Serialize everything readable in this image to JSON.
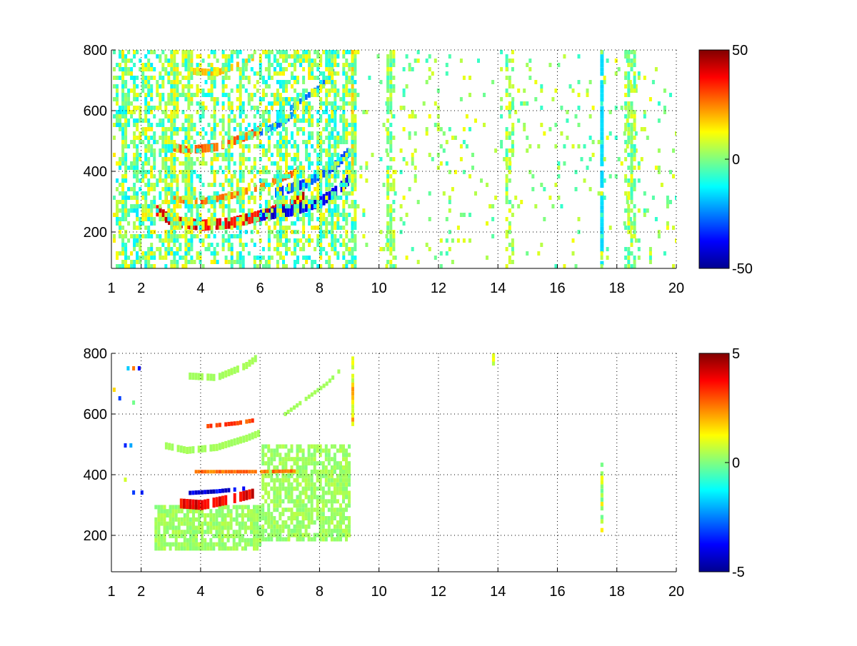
{
  "chart_data": [
    {
      "type": "heatmap",
      "title": "",
      "xlabel": "",
      "ylabel": "",
      "xlim": [
        1,
        20
      ],
      "ylim": [
        80,
        800
      ],
      "grid": true,
      "x_ticks": [
        1,
        2,
        4,
        6,
        8,
        10,
        12,
        14,
        16,
        18,
        20
      ],
      "x_tick_labels": [
        "1",
        "2",
        "4",
        "6",
        "8",
        "10",
        "12",
        "14",
        "16",
        "18",
        "20"
      ],
      "y_ticks": [
        200,
        400,
        600,
        800
      ],
      "y_tick_labels": [
        "200",
        "400",
        "600",
        "800"
      ],
      "colorbar": {
        "colormap": "jet",
        "range": [
          -50,
          50
        ],
        "ticks": [
          50,
          0,
          -50
        ],
        "tick_labels": [
          "50",
          "0",
          "-50"
        ]
      },
      "features": [
        {
          "kind": "curve",
          "points": [
            [
              2.5,
              270
            ],
            [
              3.0,
              235
            ],
            [
              4.0,
              222
            ],
            [
              5.0,
              230
            ],
            [
              6.0,
              255
            ],
            [
              7.0,
              290
            ],
            [
              7.5,
              320
            ]
          ],
          "value": 45,
          "thickness": 16
        },
        {
          "kind": "curve",
          "points": [
            [
              6.0,
              255
            ],
            [
              7.0,
              270
            ],
            [
              8.0,
              300
            ],
            [
              8.6,
              340
            ],
            [
              9.0,
              380
            ]
          ],
          "value": -45,
          "thickness": 16
        },
        {
          "kind": "curve",
          "points": [
            [
              2.8,
              310
            ],
            [
              4.0,
              300
            ],
            [
              5.0,
              320
            ],
            [
              6.0,
              350
            ],
            [
              7.0,
              390
            ],
            [
              7.5,
              420
            ]
          ],
          "value": 30,
          "thickness": 10
        },
        {
          "kind": "curve",
          "points": [
            [
              6.5,
              330
            ],
            [
              7.5,
              360
            ],
            [
              8.5,
              420
            ],
            [
              9.0,
              470
            ]
          ],
          "value": -35,
          "thickness": 14
        },
        {
          "kind": "curve",
          "points": [
            [
              3.0,
              480
            ],
            [
              3.5,
              470
            ],
            [
              4.5,
              480
            ],
            [
              5.5,
              515
            ],
            [
              6.0,
              540
            ]
          ],
          "value": 32,
          "thickness": 12
        },
        {
          "kind": "curve",
          "points": [
            [
              6.0,
              530
            ],
            [
              6.7,
              560
            ],
            [
              7.2,
              600
            ]
          ],
          "value": -30,
          "thickness": 10
        },
        {
          "kind": "curve",
          "points": [
            [
              3.6,
              730
            ],
            [
              4.5,
              725
            ],
            [
              5.5,
              760
            ],
            [
              5.9,
              790
            ]
          ],
          "value": 22,
          "thickness": 10
        },
        {
          "kind": "curve",
          "points": [
            [
              7.0,
              610
            ],
            [
              8.0,
              680
            ],
            [
              8.5,
              740
            ]
          ],
          "value": -28,
          "thickness": 8
        },
        {
          "kind": "vband",
          "x": 17.5,
          "ymin": 90,
          "ymax": 800,
          "value": -16,
          "width": 0.12
        },
        {
          "kind": "vband",
          "x": 9.1,
          "ymin": 380,
          "ymax": 800,
          "value": 18,
          "width": 0.08
        },
        {
          "kind": "noise",
          "x0": 1.0,
          "x1": 9.2,
          "y0": 80,
          "y1": 800,
          "density": 0.55,
          "values": [
            -15,
            15
          ]
        },
        {
          "kind": "noise",
          "x0": 9.2,
          "x1": 20,
          "y0": 80,
          "y1": 800,
          "density": 0.06,
          "values": [
            -8,
            12
          ]
        },
        {
          "kind": "noise",
          "x0": 18.2,
          "x1": 18.6,
          "y0": 80,
          "y1": 800,
          "density": 0.6,
          "values": [
            -8,
            12
          ]
        },
        {
          "kind": "noise",
          "x0": 14.2,
          "x1": 14.5,
          "y0": 80,
          "y1": 800,
          "density": 0.4,
          "values": [
            -8,
            12
          ]
        },
        {
          "kind": "noise",
          "x0": 10.2,
          "x1": 10.5,
          "y0": 80,
          "y1": 800,
          "density": 0.45,
          "values": [
            -8,
            12
          ]
        }
      ]
    },
    {
      "type": "heatmap",
      "title": "",
      "xlabel": "",
      "ylabel": "",
      "xlim": [
        1,
        20
      ],
      "ylim": [
        80,
        800
      ],
      "grid": true,
      "x_ticks": [
        1,
        2,
        4,
        6,
        8,
        10,
        12,
        14,
        16,
        18,
        20
      ],
      "x_tick_labels": [
        "1",
        "2",
        "4",
        "6",
        "8",
        "10",
        "12",
        "14",
        "16",
        "18",
        "20"
      ],
      "y_ticks": [
        200,
        400,
        600,
        800
      ],
      "y_tick_labels": [
        "200",
        "400",
        "600",
        "800"
      ],
      "colorbar": {
        "colormap": "jet",
        "range": [
          -5,
          5
        ],
        "ticks": [
          5,
          0,
          -5
        ],
        "tick_labels": [
          "5",
          "0",
          "-5"
        ]
      },
      "features": [
        {
          "kind": "region",
          "x0": 2.4,
          "x1": 6.0,
          "y0": 150,
          "y1": 300,
          "value": 0.3,
          "density": 0.8
        },
        {
          "kind": "region",
          "x0": 6.0,
          "x1": 9.0,
          "y0": 180,
          "y1": 500,
          "value": 0.3,
          "density": 0.75
        },
        {
          "kind": "curve",
          "points": [
            [
              2.8,
              495
            ],
            [
              3.5,
              480
            ],
            [
              4.5,
              490
            ],
            [
              5.5,
              520
            ],
            [
              6.0,
              540
            ]
          ],
          "value": 0.4,
          "thickness": 10
        },
        {
          "kind": "curve",
          "points": [
            [
              3.6,
              725
            ],
            [
              4.5,
              720
            ],
            [
              5.5,
              760
            ],
            [
              5.9,
              790
            ]
          ],
          "value": 0.4,
          "thickness": 10
        },
        {
          "kind": "curve",
          "points": [
            [
              6.8,
              600
            ],
            [
              7.5,
              650
            ],
            [
              8.2,
              700
            ],
            [
              8.8,
              760
            ]
          ],
          "value": 0.4,
          "thickness": 6
        },
        {
          "kind": "curve",
          "points": [
            [
              3.3,
              305
            ],
            [
              4.0,
              300
            ],
            [
              5.0,
              320
            ],
            [
              5.8,
              340
            ]
          ],
          "value": 4.5,
          "thickness": 14
        },
        {
          "kind": "curve",
          "points": [
            [
              3.6,
              340
            ],
            [
              4.5,
              345
            ],
            [
              5.5,
              355
            ]
          ],
          "value": -4.5,
          "thickness": 6
        },
        {
          "kind": "curve",
          "points": [
            [
              4.2,
              560
            ],
            [
              5.2,
              570
            ],
            [
              5.8,
              580
            ]
          ],
          "value": 3.5,
          "thickness": 6
        },
        {
          "kind": "curve",
          "points": [
            [
              3.8,
              410
            ],
            [
              5.0,
              410
            ],
            [
              6.0,
              410
            ],
            [
              7.2,
              412
            ]
          ],
          "value": 3.0,
          "thickness": 5
        },
        {
          "kind": "vband",
          "x": 17.5,
          "ymin": 210,
          "ymax": 440,
          "value": 0.5,
          "width": 0.1
        },
        {
          "kind": "vband",
          "x": 9.1,
          "ymin": 560,
          "ymax": 790,
          "value": 1.5,
          "width": 0.06
        },
        {
          "kind": "vband",
          "x": 13.85,
          "ymin": 760,
          "ymax": 800,
          "value": 0.4,
          "width": 0.1
        },
        {
          "kind": "noise",
          "x0": 1.0,
          "x1": 2.4,
          "y0": 80,
          "y1": 800,
          "density": 0.02,
          "values": [
            -4,
            4
          ]
        }
      ]
    }
  ]
}
